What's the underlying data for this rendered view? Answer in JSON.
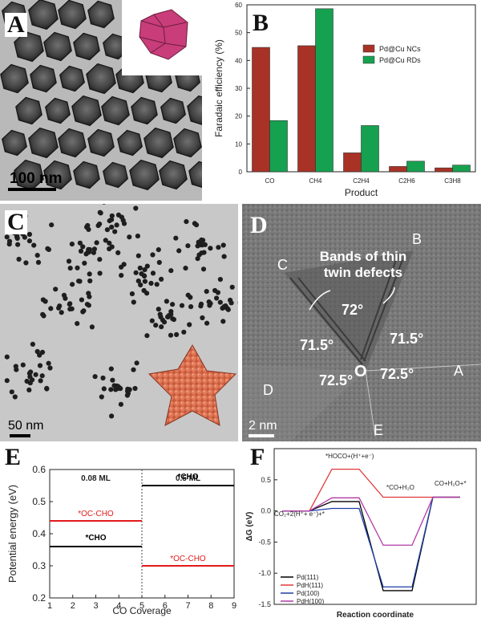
{
  "panels": {
    "A": {
      "letter": "A",
      "scale_bar": "100 nm"
    },
    "B": {
      "letter": "B",
      "chart_data": {
        "type": "bar",
        "categories": [
          "CO",
          "CH4",
          "C2H4",
          "C2H6",
          "C3H8"
        ],
        "series": [
          {
            "name": "Pd@Cu NCs",
            "values": [
              44.7,
              45.3,
              6.8,
              1.9,
              1.4
            ],
            "color": "#a83226"
          },
          {
            "name": "Pd@Cu RDs",
            "values": [
              18.4,
              58.6,
              16.6,
              3.8,
              2.4
            ],
            "color": "#16a150"
          }
        ],
        "xlabel": "Product",
        "ylabel": "Faradaic efficiency (%)",
        "ylim": [
          0,
          60
        ],
        "yticks": [
          0,
          10,
          20,
          30,
          40,
          50,
          60
        ],
        "legend": "top-right"
      }
    },
    "C": {
      "letter": "C",
      "scale_bar": "50 nm"
    },
    "D": {
      "letter": "D",
      "scale_bar": "2 nm",
      "annotation": [
        "Bands of thin",
        "twin defects"
      ],
      "points": [
        "A",
        "B",
        "C",
        "D",
        "E",
        "O"
      ],
      "angles": [
        "72°",
        "71.5°",
        "71.5°",
        "72.5°",
        "72.5°"
      ]
    },
    "E": {
      "letter": "E",
      "chart_data": {
        "type": "line",
        "xlabel": "CO Coverage",
        "ylabel": "Potential energy (eV)",
        "xlim": [
          1,
          9
        ],
        "ylim": [
          0.2,
          0.6
        ],
        "xticks": [
          1,
          2,
          3,
          4,
          5,
          6,
          7,
          8,
          9
        ],
        "yticks": [
          0.2,
          0.3,
          0.4,
          0.5,
          0.6
        ],
        "region_labels": [
          "0.08 ML",
          "0.5 ML"
        ],
        "divider_x": 5,
        "segments": [
          {
            "label": "*OC-CHO",
            "x": [
              1,
              5
            ],
            "y": 0.44,
            "color": "#e21b1b"
          },
          {
            "label": "*CHO",
            "x": [
              1,
              5
            ],
            "y": 0.36,
            "color": "#000000"
          },
          {
            "label": "*CHO",
            "x": [
              5,
              9
            ],
            "y": 0.55,
            "color": "#000000"
          },
          {
            "label": "*OC-CHO",
            "x": [
              5,
              9
            ],
            "y": 0.3,
            "color": "#e21b1b"
          }
        ]
      }
    },
    "F": {
      "letter": "F",
      "chart_data": {
        "type": "line",
        "xlabel": "Reaction coordinate",
        "ylabel": "ΔG (eV)",
        "ylim": [
          -1.5,
          1.0
        ],
        "yticks": [
          -1.5,
          -1.0,
          -0.5,
          0.0,
          0.5
        ],
        "states": [
          "CO2+2(H+ + e-)+*",
          "*HOCO+(H+ + e-)",
          "*CO+H2O",
          "CO+H2O+*"
        ],
        "series": [
          {
            "name": "Pd(111)",
            "values": [
              0.0,
              0.15,
              -1.28,
              0.22
            ],
            "color": "#000000"
          },
          {
            "name": "PdH(111)",
            "values": [
              0.0,
              0.67,
              0.22,
              0.22
            ],
            "color": "#e0383b"
          },
          {
            "name": "Pd(100)",
            "values": [
              0.0,
              0.04,
              -1.22,
              0.22
            ],
            "color": "#1f3fa6"
          },
          {
            "name": "PdH(100)",
            "values": [
              0.0,
              0.21,
              -0.55,
              0.22
            ],
            "color": "#b03aa6"
          }
        ],
        "legend": "bottom-left"
      }
    }
  }
}
